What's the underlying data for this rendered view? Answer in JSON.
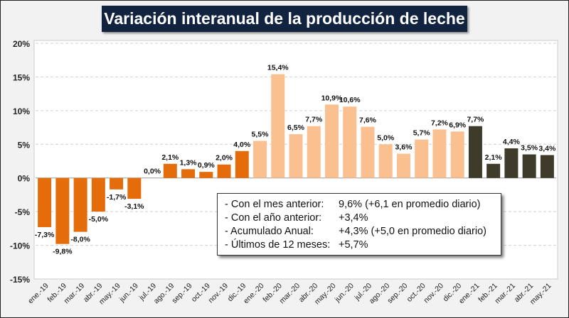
{
  "chart_data": {
    "type": "bar",
    "title": "Variación interanual de la producción de leche",
    "categories": [
      "ene.-19",
      "feb.-19",
      "mar.-19",
      "abr.-19",
      "may.-19",
      "jun.-19",
      "jul.-19",
      "ago.-19",
      "sep.-19",
      "oct.-19",
      "nov.-19",
      "dic.-19",
      "ene.-20",
      "feb.-20",
      "mar.-20",
      "abr.-20",
      "may.-20",
      "jun.-20",
      "jul.-20",
      "ago.-20",
      "sep.-20",
      "oct.-20",
      "nov.-20",
      "dic.-20",
      "ene.-21",
      "feb.-21",
      "mar.-21",
      "abr.-21",
      "may.-21"
    ],
    "values": [
      -7.3,
      -9.8,
      -8.0,
      -5.0,
      -1.7,
      -3.1,
      0.0,
      2.1,
      1.3,
      0.9,
      2.0,
      4.0,
      5.5,
      15.4,
      6.5,
      7.7,
      10.9,
      10.6,
      7.6,
      5.0,
      3.6,
      5.7,
      7.2,
      6.9,
      7.7,
      2.1,
      4.4,
      3.5,
      3.4
    ],
    "data_labels": [
      "-7,3%",
      "-9,8%",
      "-8,0%",
      "-5,0%",
      "-1,7%",
      "-3,1%",
      "0,0%",
      "2,1%",
      "1,3%",
      "0,9%",
      "2,0%",
      "4,0%",
      "5,5%",
      "15,4%",
      "6,5%",
      "7,7%",
      "10,9%",
      "10,6%",
      "7,6%",
      "5,0%",
      "3,6%",
      "5,7%",
      "7,2%",
      "6,9%",
      "7,7%",
      "2,1%",
      "4,4%",
      "3,5%",
      "3,4%"
    ],
    "yticks": [
      "20%",
      "15%",
      "10%",
      "5%",
      "0%",
      "-5%",
      "-10%",
      "-15%"
    ],
    "ytick_values": [
      20,
      15,
      10,
      5,
      0,
      -5,
      -10,
      -15
    ],
    "ylim": [
      -15,
      20
    ],
    "grid": "horizontal dashed",
    "year_colors": {
      "2019": "#e46c0a",
      "2020": "#fac090",
      "2021": "#3f3b2a"
    }
  },
  "note": [
    {
      "label": "- Con el mes anterior:",
      "value": "9,6% (+6,1 en promedio diario)"
    },
    {
      "label": "- Con el año anterior:",
      "value": "+3,4%"
    },
    {
      "label": "- Acumulado Anual:",
      "value": "+4,3% (+5,0 en promedio diario)"
    },
    {
      "label": "- Últimos de 12 meses:",
      "value": "+5,7%"
    }
  ]
}
